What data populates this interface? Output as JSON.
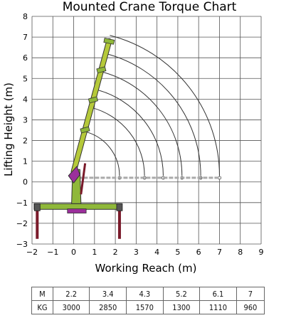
{
  "chart_data": {
    "type": "line",
    "title": "Mounted Crane Torque Chart",
    "xlabel": "Working Reach (m)",
    "ylabel": "Lifting Height (m)",
    "xlim": [
      -2,
      9
    ],
    "ylim": [
      -3,
      8
    ],
    "grid": true,
    "x_ticks": [
      "−2",
      "−1",
      "0",
      "1",
      "2",
      "3",
      "4",
      "5",
      "6",
      "7",
      "8",
      "9"
    ],
    "y_ticks": [
      "8",
      "7",
      "6",
      "5",
      "4",
      "3",
      "2",
      "1",
      "0",
      "−1",
      "−2",
      "−3"
    ],
    "reach_arcs": [
      {
        "boom_length": "2.2",
        "reach": 2.2
      },
      {
        "boom_length": "3.4",
        "reach": 3.4
      },
      {
        "boom_length": "4.3",
        "reach": 4.3
      },
      {
        "boom_length": "5.2",
        "reach": 5.2
      },
      {
        "boom_length": "6.1",
        "reach": 6.1
      },
      {
        "boom_length": "7",
        "reach": 7.0
      }
    ],
    "boom_tip": {
      "x": 1.7,
      "y": 6.8
    },
    "boom_base": {
      "x": 0.0,
      "y": 0.3
    }
  },
  "table": {
    "row1_label": "M",
    "row1_values": [
      "2.2",
      "3.4",
      "4.3",
      "5.2",
      "6.1",
      "7"
    ],
    "row2_label": "KG",
    "row2_values": [
      "3000",
      "2850",
      "1570",
      "1300",
      "1110",
      "960"
    ]
  },
  "colors": {
    "boom": "#b5c93a",
    "base": "#8fb83a",
    "joint": "#9b2f9b",
    "leg": "#7a1a2a",
    "grid": "#555555",
    "arc": "#333333"
  }
}
